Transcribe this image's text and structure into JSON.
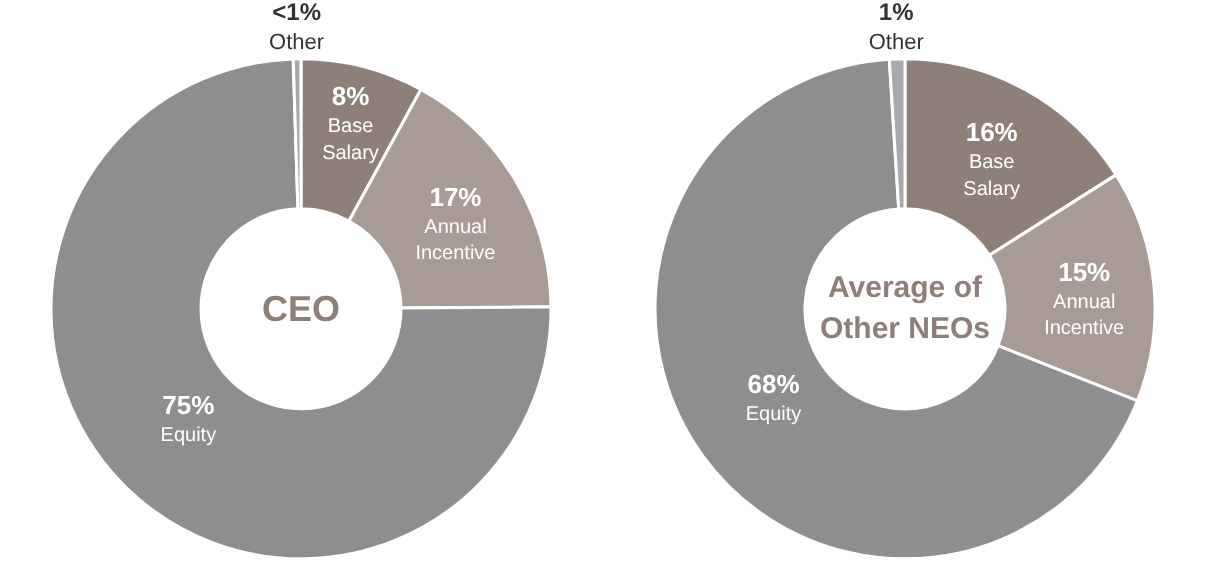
{
  "chart_data": [
    {
      "type": "donut",
      "title": "CEO",
      "categories": [
        "Base Salary",
        "Annual Incentive",
        "Equity",
        "Other"
      ],
      "values": [
        8,
        17,
        75,
        0.5
      ],
      "value_labels": [
        "8%",
        "17%",
        "75%",
        "<1%"
      ],
      "colors": [
        "#8f7f79",
        "#a89a94",
        "#8e8e91",
        "#a9a9ab"
      ]
    },
    {
      "type": "donut",
      "title": "Average of Other NEOs",
      "categories": [
        "Base Salary",
        "Annual Incentive",
        "Equity",
        "Other"
      ],
      "values": [
        16,
        15,
        68,
        1
      ],
      "value_labels": [
        "16%",
        "15%",
        "68%",
        "1%"
      ],
      "colors": [
        "#8f7f79",
        "#a89a94",
        "#8e8e91",
        "#a9a9ab"
      ]
    }
  ]
}
